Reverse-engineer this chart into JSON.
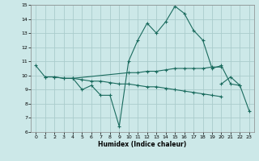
{
  "title": "",
  "xlabel": "Humidex (Indice chaleur)",
  "ylabel": "",
  "xlim": [
    -0.5,
    23.5
  ],
  "ylim": [
    6,
    15
  ],
  "yticks": [
    6,
    7,
    8,
    9,
    10,
    11,
    12,
    13,
    14,
    15
  ],
  "xticks": [
    0,
    1,
    2,
    3,
    4,
    5,
    6,
    7,
    8,
    9,
    10,
    11,
    12,
    13,
    14,
    15,
    16,
    17,
    18,
    19,
    20,
    21,
    22,
    23
  ],
  "line_color": "#1a6b5e",
  "bg_color": "#cce8e8",
  "grid_color": "#aacccc",
  "lines": [
    {
      "x": [
        0,
        1,
        2,
        3,
        4,
        5,
        6,
        7,
        8,
        9,
        10,
        11,
        12,
        13,
        14,
        15,
        16,
        17,
        18,
        19,
        20,
        21,
        22
      ],
      "y": [
        10.7,
        9.9,
        9.9,
        9.8,
        9.8,
        9.0,
        9.3,
        8.6,
        8.6,
        6.4,
        11.0,
        12.5,
        13.7,
        13.0,
        13.8,
        14.9,
        14.4,
        13.2,
        12.5,
        10.5,
        10.7,
        9.4,
        9.3
      ]
    },
    {
      "x": [
        1,
        2,
        3,
        4,
        10,
        11,
        12,
        13,
        14,
        15,
        16,
        17,
        18,
        19,
        20
      ],
      "y": [
        9.9,
        9.9,
        9.8,
        9.8,
        10.2,
        10.2,
        10.3,
        10.3,
        10.4,
        10.5,
        10.5,
        10.5,
        10.5,
        10.6,
        10.6
      ]
    },
    {
      "x": [
        4,
        5,
        6,
        7,
        8,
        9,
        10,
        11,
        12,
        13,
        14,
        15,
        16,
        17,
        18,
        19,
        20
      ],
      "y": [
        9.8,
        9.7,
        9.6,
        9.6,
        9.5,
        9.4,
        9.4,
        9.3,
        9.2,
        9.2,
        9.1,
        9.0,
        8.9,
        8.8,
        8.7,
        8.6,
        8.5
      ]
    },
    {
      "x": [
        20,
        21,
        22,
        23
      ],
      "y": [
        9.4,
        9.9,
        9.3,
        7.5
      ]
    }
  ]
}
